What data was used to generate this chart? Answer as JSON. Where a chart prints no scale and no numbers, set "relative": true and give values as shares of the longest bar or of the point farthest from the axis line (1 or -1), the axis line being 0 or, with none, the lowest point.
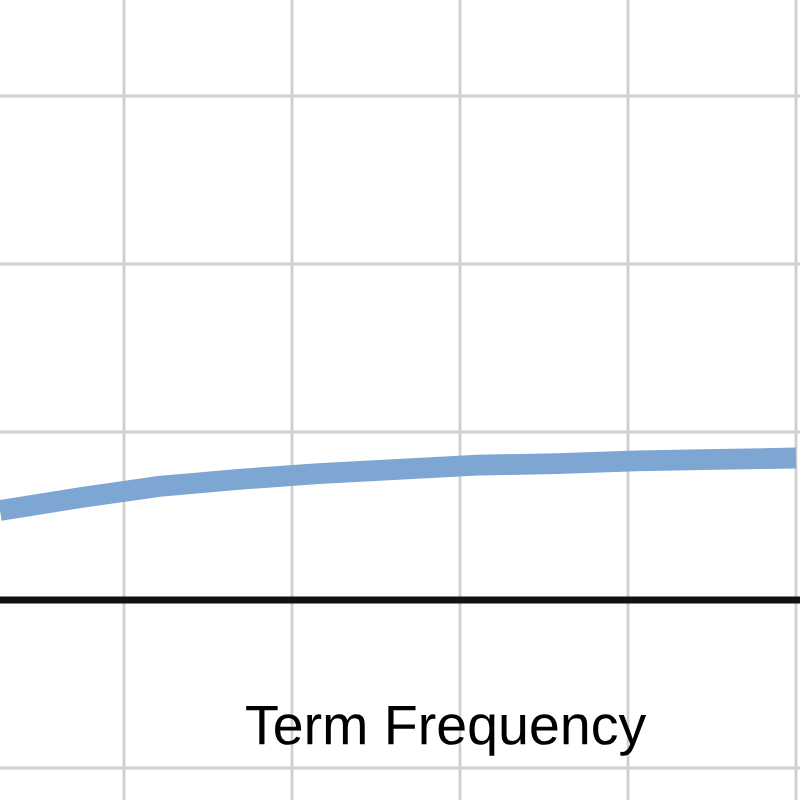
{
  "chart_data": {
    "type": "line",
    "relative": true,
    "xlabel": "Term Frequency",
    "categories": [
      null,
      null,
      null,
      null,
      null,
      null,
      null,
      null,
      null,
      null,
      null
    ],
    "series": [
      {
        "color": "#7ea6d3",
        "values": [
          0.63,
          0.72,
          0.8,
          0.85,
          0.89,
          0.92,
          0.95,
          0.96,
          0.98,
          0.99,
          1.0
        ]
      }
    ],
    "grid": true,
    "marker": "none",
    "line_style": "solid"
  }
}
